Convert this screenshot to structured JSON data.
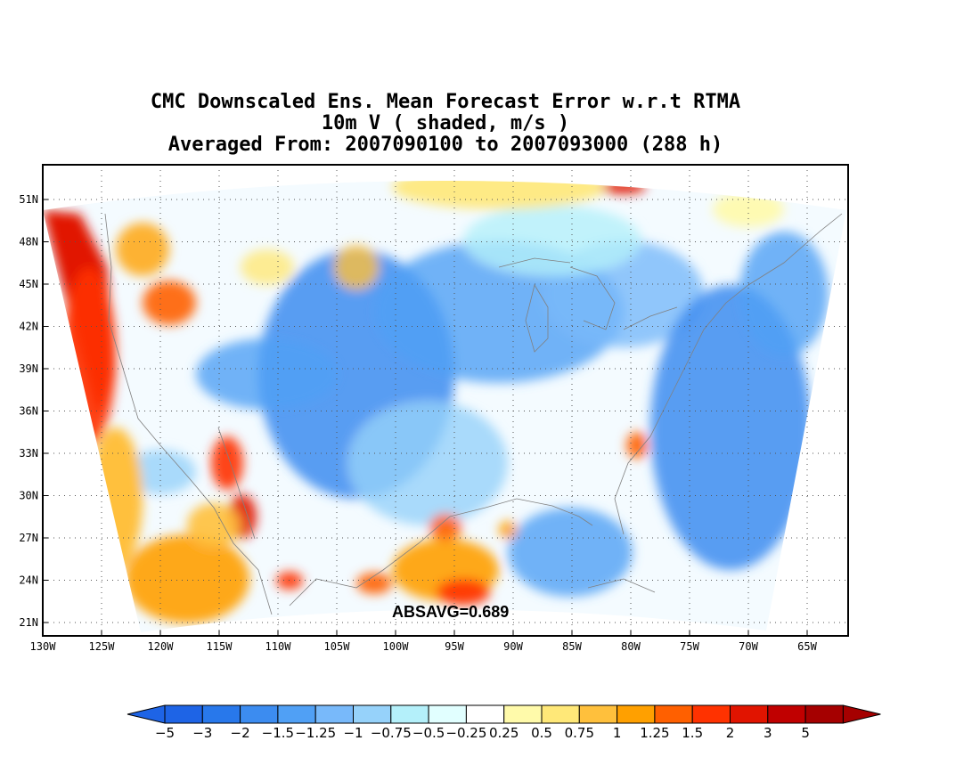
{
  "title": {
    "line1": "CMC Downscaled Ens. Mean Forecast Error w.r.t RTMA",
    "line2": "10m V ( shaded, m/s )",
    "line3": "Averaged From: 2007090100 to 2007093000 (288 h)"
  },
  "stat_label": "ABSAVG=0.689",
  "lat_ticks": [
    "51N",
    "48N",
    "45N",
    "42N",
    "39N",
    "36N",
    "33N",
    "30N",
    "27N",
    "24N",
    "21N"
  ],
  "lon_ticks": [
    "130W",
    "125W",
    "120W",
    "115W",
    "110W",
    "105W",
    "100W",
    "95W",
    "90W",
    "85W",
    "80W",
    "75W",
    "70W",
    "65W"
  ],
  "colorbar": {
    "labels": [
      "−5",
      "−3",
      "−2",
      "−1.5",
      "−1.25",
      "−1",
      "−0.75",
      "−0.5",
      "−0.25",
      "0.25",
      "0.5",
      "0.75",
      "1",
      "1.25",
      "1.5",
      "2",
      "3",
      "5"
    ],
    "colors": [
      "#1e64e6",
      "#2878eb",
      "#3c8cf0",
      "#50a0f5",
      "#78b9fa",
      "#96d2fa",
      "#b4f0fa",
      "#e1ffff",
      "#ffffff",
      "#fffaaa",
      "#ffe878",
      "#ffc03c",
      "#ffa000",
      "#ff6000",
      "#ff3200",
      "#e11400",
      "#c00000",
      "#a50000"
    ],
    "under_color": "#1e64e6",
    "over_color": "#a50000"
  }
}
